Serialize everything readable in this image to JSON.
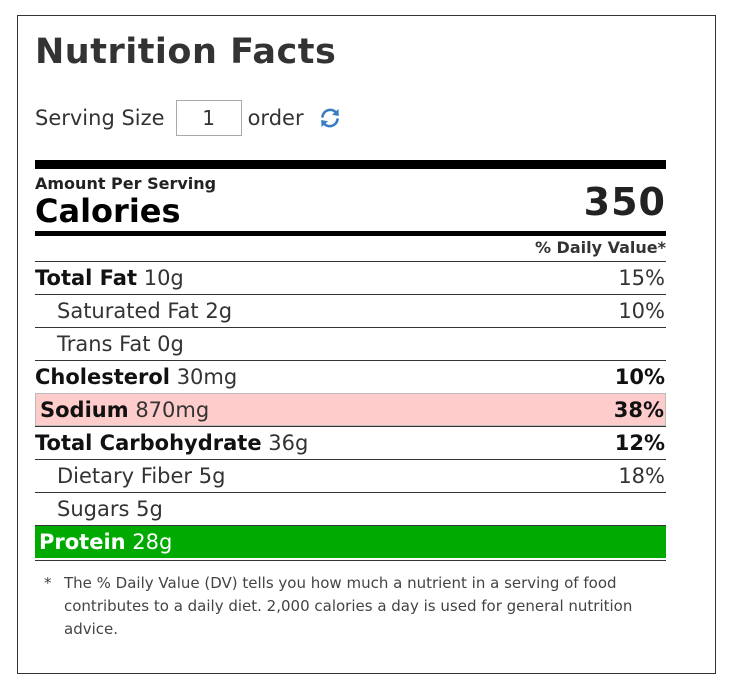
{
  "title": "Nutrition Facts",
  "serving": {
    "label": "Serving Size",
    "value": "1",
    "unit": "order",
    "refresh_icon": "refresh-icon"
  },
  "amount_per_serving": "Amount Per Serving",
  "calories": {
    "label": "Calories",
    "value": "350"
  },
  "daily_value_header": "% Daily Value*",
  "nutrients": [
    {
      "name": "Total Fat",
      "amount": "10g",
      "dv": "15%"
    },
    {
      "name": "Saturated Fat",
      "amount": "2g",
      "dv": "10%"
    },
    {
      "name": "Trans Fat",
      "amount": "0g",
      "dv": ""
    },
    {
      "name": "Cholesterol",
      "amount": "30mg",
      "dv": "10%"
    },
    {
      "name": "Sodium",
      "amount": "870mg",
      "dv": "38%"
    },
    {
      "name": "Total Carbohydrate",
      "amount": "36g",
      "dv": "12%"
    },
    {
      "name": "Dietary Fiber",
      "amount": "5g",
      "dv": "18%"
    },
    {
      "name": "Sugars",
      "amount": "5g",
      "dv": ""
    },
    {
      "name": "Protein",
      "amount": "28g",
      "dv": ""
    }
  ],
  "colors": {
    "sodium_highlight": "#ffcccc",
    "protein_highlight": "#00aa00",
    "refresh_icon": "#3a7cc4"
  },
  "footnote": {
    "star": "*",
    "text": "The % Daily Value (DV) tells you how much a nutrient in a serving of food contributes to a daily diet. 2,000 calories a day is used for general nutrition advice."
  }
}
